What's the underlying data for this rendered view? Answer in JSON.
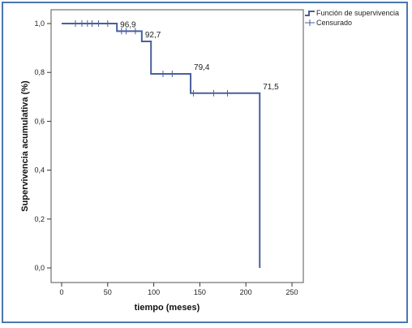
{
  "chart_data": {
    "type": "line",
    "subtype": "kaplan-meier-step",
    "xlabel": "tiempo (meses)",
    "ylabel": "Supervivencia acumulativa (%)",
    "xlim": [
      0,
      250
    ],
    "ylim": [
      0,
      1
    ],
    "x_ticks": [
      0,
      50,
      100,
      150,
      200,
      250
    ],
    "y_ticks": [
      0.0,
      0.2,
      0.4,
      0.6,
      0.8,
      1.0
    ],
    "x_tick_labels": [
      "0",
      "50",
      "100",
      "150",
      "200",
      "250"
    ],
    "y_tick_labels": [
      "0,0",
      "0,2",
      "0,4",
      "0,6",
      "0,8",
      "1,0"
    ],
    "grid": false,
    "legend_position": "top-right",
    "series": [
      {
        "name": "Función de supervivencia",
        "color": "#4a5f9c",
        "steps": [
          {
            "x": 0,
            "y": 1.0
          },
          {
            "x": 60,
            "y": 0.969
          },
          {
            "x": 87,
            "y": 0.927
          },
          {
            "x": 97,
            "y": 0.794
          },
          {
            "x": 140,
            "y": 0.715
          },
          {
            "x": 215,
            "y": 0.0
          }
        ]
      }
    ],
    "censored": {
      "name": "Censurado",
      "points": [
        {
          "x": 15,
          "y": 1.0
        },
        {
          "x": 22,
          "y": 1.0
        },
        {
          "x": 28,
          "y": 1.0
        },
        {
          "x": 33,
          "y": 1.0
        },
        {
          "x": 40,
          "y": 1.0
        },
        {
          "x": 50,
          "y": 1.0
        },
        {
          "x": 65,
          "y": 0.969
        },
        {
          "x": 70,
          "y": 0.969
        },
        {
          "x": 80,
          "y": 0.969
        },
        {
          "x": 110,
          "y": 0.794
        },
        {
          "x": 120,
          "y": 0.794
        },
        {
          "x": 143,
          "y": 0.715
        },
        {
          "x": 165,
          "y": 0.715
        },
        {
          "x": 180,
          "y": 0.715
        }
      ]
    },
    "annotations": [
      {
        "text": "96,9",
        "x": 60,
        "y": 0.969
      },
      {
        "text": "92,7",
        "x": 87,
        "y": 0.927
      },
      {
        "text": "79,4",
        "x": 140,
        "y": 0.794
      },
      {
        "text": "71,5",
        "x": 215,
        "y": 0.715
      }
    ]
  },
  "legend": {
    "items": [
      {
        "label": "Función de supervivencia",
        "icon": "step-line-icon"
      },
      {
        "label": "Censurado",
        "icon": "plus-icon"
      }
    ]
  },
  "colors": {
    "frame": "#4b78b0",
    "series": "#4a5f9c",
    "axis": "#333333"
  }
}
